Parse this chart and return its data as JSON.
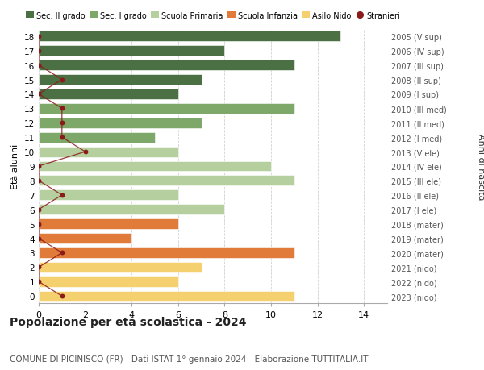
{
  "ages": [
    18,
    17,
    16,
    15,
    14,
    13,
    12,
    11,
    10,
    9,
    8,
    7,
    6,
    5,
    4,
    3,
    2,
    1,
    0
  ],
  "right_labels": [
    "2005 (V sup)",
    "2006 (IV sup)",
    "2007 (III sup)",
    "2008 (II sup)",
    "2009 (I sup)",
    "2010 (III med)",
    "2011 (II med)",
    "2012 (I med)",
    "2013 (V ele)",
    "2014 (IV ele)",
    "2015 (III ele)",
    "2016 (II ele)",
    "2017 (I ele)",
    "2018 (mater)",
    "2019 (mater)",
    "2020 (mater)",
    "2021 (nido)",
    "2022 (nido)",
    "2023 (nido)"
  ],
  "bar_values": [
    13,
    8,
    11,
    7,
    6,
    11,
    7,
    5,
    6,
    10,
    11,
    6,
    8,
    6,
    4,
    11,
    7,
    6,
    11
  ],
  "bar_colors": [
    "#4a7043",
    "#4a7043",
    "#4a7043",
    "#4a7043",
    "#4a7043",
    "#7da869",
    "#7da869",
    "#7da869",
    "#b5cf9e",
    "#b5cf9e",
    "#b5cf9e",
    "#b5cf9e",
    "#b5cf9e",
    "#e07b39",
    "#e07b39",
    "#e07b39",
    "#f5d06e",
    "#f5d06e",
    "#f5d06e"
  ],
  "stranieri_values": [
    0,
    0,
    0,
    1,
    0,
    1,
    1,
    1,
    2,
    0,
    0,
    1,
    0,
    0,
    0,
    1,
    0,
    0,
    1
  ],
  "stranieri_color": "#8b1a1a",
  "legend_labels": [
    "Sec. II grado",
    "Sec. I grado",
    "Scuola Primaria",
    "Scuola Infanzia",
    "Asilo Nido",
    "Stranieri"
  ],
  "legend_colors": [
    "#4a7043",
    "#7da869",
    "#b5cf9e",
    "#e07b39",
    "#f5d06e",
    "#8b1a1a"
  ],
  "title": "Popolazione per età scolastica - 2024",
  "subtitle": "COMUNE DI PICINISCO (FR) - Dati ISTAT 1° gennaio 2024 - Elaborazione TUTTITALIA.IT",
  "ylabel": "Età alunni",
  "right_ylabel": "Anni di nascita",
  "xlim": [
    0,
    15
  ],
  "background_color": "#ffffff",
  "grid_color": "#cccccc",
  "bar_height": 0.72
}
